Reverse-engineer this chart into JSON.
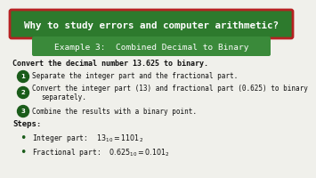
{
  "bg_color": "#f0f0eb",
  "title_text": "Why to study errors and computer arithmetic?",
  "title_bg": "#2d7a2d",
  "title_border": "#b52222",
  "subtitle_text": "Example 3:  Combined Decimal to Binary",
  "subtitle_bg": "#3a8a3a",
  "bold_line": "Convert the decimal number 13.625 to binary.",
  "numbered_items": [
    "Separate the integer part and the fractional part.",
    "Convert the integer part (13) and fractional part (0.625) to binary\nseparately.",
    "Combine the results with a binary point."
  ],
  "steps_label": "Steps:",
  "bullet_line1": "Integer part:  $13_{10} = 1101_2$",
  "bullet_line2": "Fractional part:  $0.625_{10} = 0.101_2$",
  "text_color": "#111111",
  "circle_color": "#1a5c1a",
  "bullet_color": "#1a5c1a"
}
